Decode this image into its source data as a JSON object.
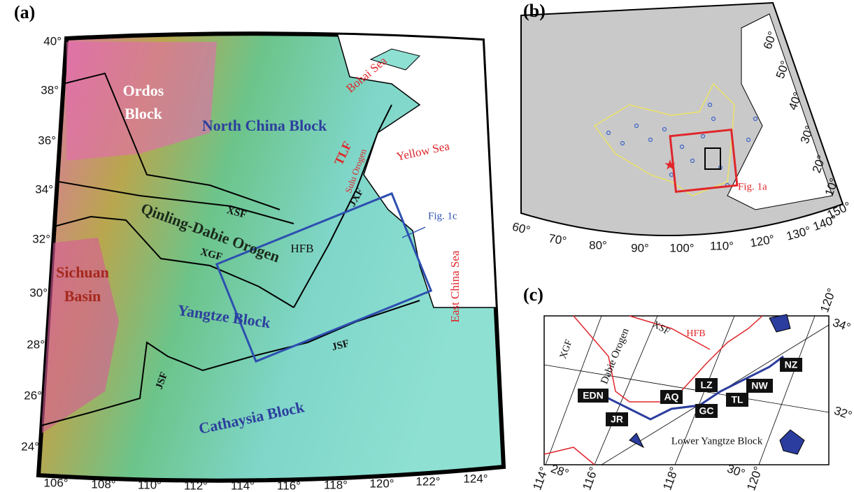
{
  "panel_a": {
    "label": "(a)",
    "lat_ticks": [
      "40°",
      "38°",
      "36°",
      "34°",
      "32°",
      "30°",
      "28°",
      "26°",
      "24°"
    ],
    "lon_ticks": [
      "106°",
      "108°",
      "110°",
      "112°",
      "114°",
      "116°",
      "118°",
      "120°",
      "122°",
      "124°"
    ],
    "ordos": [
      "Ordos",
      "Block"
    ],
    "north_china": "North China Block",
    "qinling": "Qinling-Dabie Orogen",
    "sichuan": [
      "Sichuan",
      "Basin"
    ],
    "yangtze": "Yangtze Block",
    "cathaysia": "Cathaysia Block",
    "bohai": "Bohai Sea",
    "yellow": "Yellow Sea",
    "east_china": "East China Sea",
    "faults": [
      "TLF",
      "Sulu Orogen",
      "JXF",
      "XSF",
      "XGF",
      "HFB",
      "JSF",
      "JSF"
    ],
    "inset_ref": "Fig. 1c"
  },
  "panel_b": {
    "label": "(b)",
    "lon_ticks": [
      "60°",
      "70°",
      "80°",
      "90°",
      "100°",
      "110°",
      "120°",
      "130°",
      "140°",
      "150°"
    ],
    "lat_ticks": [
      "10°",
      "20°",
      "30°",
      "40°",
      "50°",
      "60°"
    ],
    "inset_ref": "Fig. 1a"
  },
  "panel_c": {
    "label": "(c)",
    "lon_ticks": [
      "114°",
      "116°",
      "118°",
      "120°"
    ],
    "lat_ticks_bottom": [
      "28°",
      "30°"
    ],
    "lat_ticks_right": [
      "34°",
      "32°"
    ],
    "top_tick": "120°",
    "labels": [
      "XGF",
      "Dabie Orogen",
      "XSF",
      "HFB",
      "Lower Yangtze Block"
    ],
    "stations": [
      "NZ",
      "EDN",
      "AQ",
      "LZ",
      "NW",
      "TL",
      "GC",
      "JR"
    ]
  }
}
